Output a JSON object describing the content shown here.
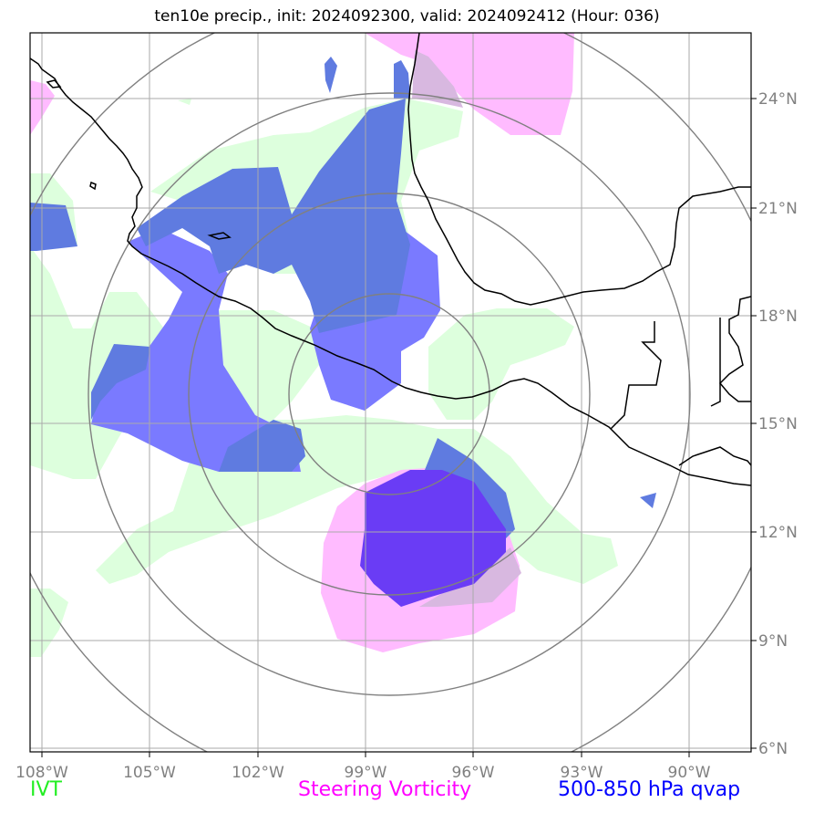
{
  "title": "ten10e precip., init: 2024092300, valid: 2024092412 (Hour: 036)",
  "lon_labels": [
    "108°W",
    "105°W",
    "102°W",
    "99°W",
    "96°W",
    "93°W",
    "90°W"
  ],
  "lat_labels": [
    "24°N",
    "21°N",
    "18°N",
    "15°N",
    "12°N",
    "9°N",
    "6°N"
  ],
  "legend": {
    "ivt": {
      "label": "IVT",
      "color": "#22ee22"
    },
    "vorticity": {
      "label": "Steering Vorticity",
      "color": "#ff00ff"
    },
    "qvap": {
      "label": "500-850 hPa qvap",
      "color": "#0000ff"
    }
  },
  "colors": {
    "ivt_fill": "#ddffdd",
    "vort_fill": "#ffbbff",
    "qvap_light": "#7a7aff",
    "qvap_mid": "#5f7be0",
    "qvap_dark": "#6a3cf5",
    "overlap": "#d8b8e0",
    "range_rings": "#808080",
    "grid": "#aaaaaa",
    "coast": "#000000"
  }
}
